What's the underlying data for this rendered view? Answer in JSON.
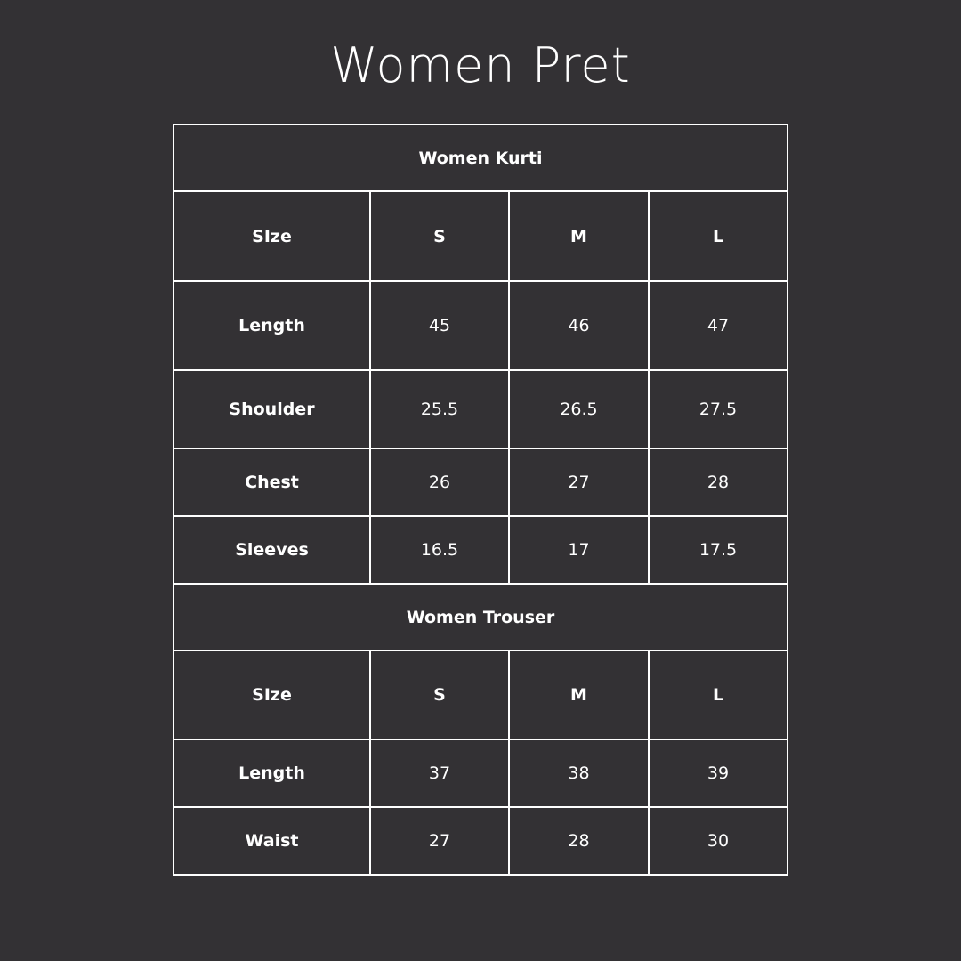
{
  "title": "Women Pret",
  "tables": [
    {
      "heading": "Women Kurti",
      "columns": [
        "SIze",
        "S",
        "M",
        "L"
      ],
      "rows": [
        {
          "label": "Length",
          "values": [
            "45",
            "46",
            "47"
          ]
        },
        {
          "label": "Shoulder",
          "values": [
            "25.5",
            "26.5",
            "27.5"
          ]
        },
        {
          "label": "Chest",
          "values": [
            "26",
            "27",
            "28"
          ]
        },
        {
          "label": "Sleeves",
          "values": [
            "16.5",
            "17",
            "17.5"
          ]
        }
      ]
    },
    {
      "heading": "Women Trouser",
      "columns": [
        "SIze",
        "S",
        "M",
        "L"
      ],
      "rows": [
        {
          "label": "Length",
          "values": [
            "37",
            "38",
            "39"
          ]
        },
        {
          "label": "Waist",
          "values": [
            "27",
            "28",
            "30"
          ]
        }
      ]
    }
  ]
}
